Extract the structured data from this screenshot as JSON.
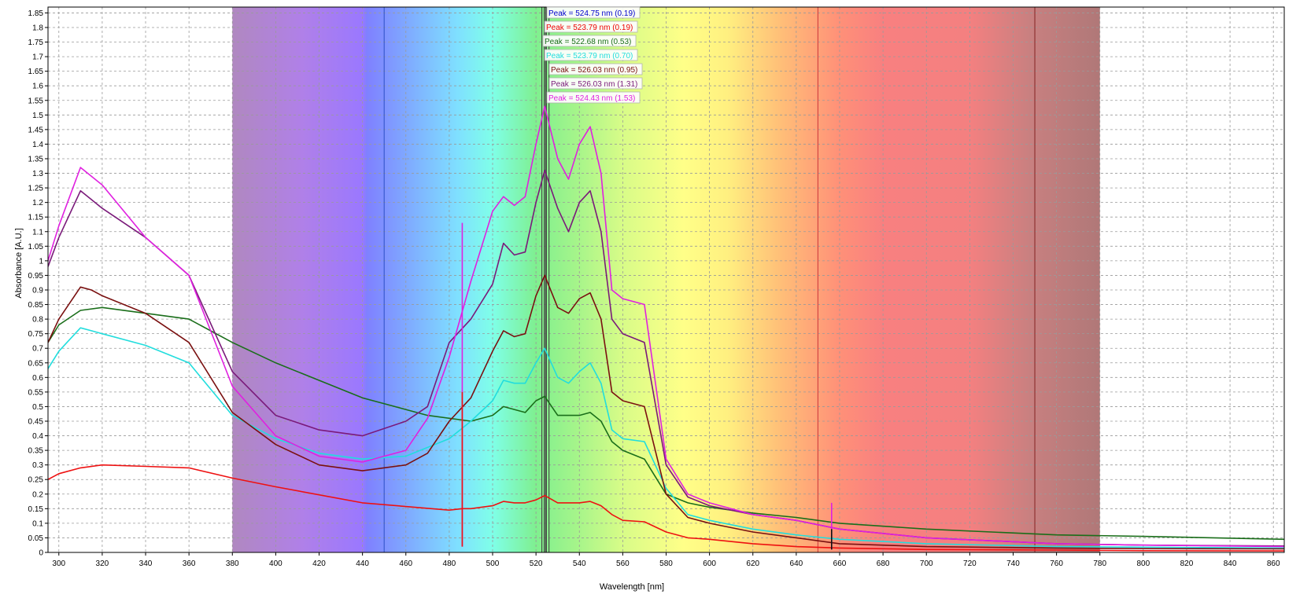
{
  "chart_data": {
    "type": "line",
    "title": "",
    "xlabel": "Wavelength [nm]",
    "ylabel": "Absorbance [A.U.]",
    "xlim": [
      295,
      865
    ],
    "ylim": [
      0,
      1.87
    ],
    "grid": true,
    "spectrum_band": [
      380,
      780
    ],
    "x_ticks": [
      300,
      320,
      340,
      360,
      380,
      400,
      420,
      440,
      460,
      480,
      500,
      520,
      540,
      560,
      580,
      600,
      620,
      640,
      660,
      680,
      700,
      720,
      740,
      760,
      780,
      800,
      820,
      840,
      860
    ],
    "y_ticks": [
      "0",
      "0.05",
      "0.1",
      "0.15",
      "0.2",
      "0.25",
      "0.3",
      "0.35",
      "0.4",
      "0.45",
      "0.5",
      "0.55",
      "0.6",
      "0.65",
      "0.7",
      "0.75",
      "0.8",
      "0.85",
      "0.9",
      "0.95",
      "1",
      "1.05",
      "1.1",
      "1.15",
      "1.2",
      "1.25",
      "1.3",
      "1.35",
      "1.4",
      "1.45",
      "1.5",
      "1.55",
      "1.6",
      "1.65",
      "1.7",
      "1.75",
      "1.8",
      "1.85"
    ],
    "markers": [
      {
        "x": 450,
        "color": "#3355cc"
      },
      {
        "x": 650,
        "color": "#d04040"
      },
      {
        "x": 750,
        "color": "#8b2a2a"
      },
      {
        "x": 522.7,
        "color": "#444444"
      },
      {
        "x": 523.8,
        "color": "#444444"
      },
      {
        "x": 524.4,
        "color": "#444444"
      },
      {
        "x": 524.8,
        "color": "#444444"
      },
      {
        "x": 526.0,
        "color": "#444444"
      }
    ],
    "peak_labels": [
      {
        "text": "Peak = 524.75 nm (0.19)",
        "color": "#0000cc"
      },
      {
        "text": "Peak = 523.79 nm (0.19)",
        "color": "#ee0000"
      },
      {
        "text": "Peak = 522.68 nm (0.53)",
        "color": "#1a6e1a"
      },
      {
        "text": "Peak = 523.79 nm (0.70)",
        "color": "#22dddd"
      },
      {
        "text": "Peak = 526.03 nm (0.95)",
        "color": "#7a1010"
      },
      {
        "text": "Peak = 526.03 nm (1.31)",
        "color": "#7a1a7a"
      },
      {
        "text": "Peak = 524.43 nm (1.53)",
        "color": "#e020e0"
      }
    ],
    "series": [
      {
        "color": "#ee1111",
        "x": [
          295,
          300,
          310,
          320,
          340,
          360,
          380,
          400,
          440,
          480,
          486,
          490,
          500,
          505,
          510,
          515,
          520,
          524,
          530,
          540,
          545,
          550,
          555,
          560,
          570,
          580,
          590,
          600,
          620,
          640,
          660,
          700,
          760,
          800,
          865
        ],
        "y": [
          0.25,
          0.27,
          0.29,
          0.3,
          0.295,
          0.29,
          0.255,
          0.225,
          0.17,
          0.145,
          0.15,
          0.15,
          0.16,
          0.175,
          0.17,
          0.17,
          0.18,
          0.195,
          0.17,
          0.17,
          0.175,
          0.16,
          0.13,
          0.11,
          0.105,
          0.07,
          0.05,
          0.045,
          0.03,
          0.02,
          0.015,
          0.01,
          0.008,
          0.006,
          0.005
        ]
      },
      {
        "color": "#1a6e1a",
        "x": [
          295,
          300,
          310,
          320,
          340,
          360,
          380,
          400,
          440,
          470,
          490,
          500,
          505,
          510,
          515,
          520,
          524,
          530,
          540,
          545,
          550,
          555,
          560,
          570,
          580,
          590,
          600,
          620,
          640,
          660,
          700,
          760,
          800,
          865
        ],
        "y": [
          0.72,
          0.78,
          0.83,
          0.84,
          0.82,
          0.8,
          0.72,
          0.65,
          0.53,
          0.47,
          0.45,
          0.47,
          0.5,
          0.49,
          0.48,
          0.52,
          0.535,
          0.47,
          0.47,
          0.48,
          0.45,
          0.38,
          0.35,
          0.32,
          0.2,
          0.17,
          0.155,
          0.135,
          0.12,
          0.1,
          0.08,
          0.06,
          0.055,
          0.045
        ]
      },
      {
        "color": "#22dddd",
        "x": [
          295,
          300,
          310,
          315,
          320,
          340,
          360,
          380,
          400,
          420,
          440,
          460,
          480,
          490,
          500,
          505,
          510,
          515,
          520,
          524,
          530,
          535,
          540,
          545,
          550,
          555,
          560,
          570,
          580,
          590,
          600,
          620,
          640,
          660,
          700,
          760,
          800,
          865
        ],
        "y": [
          0.63,
          0.69,
          0.77,
          0.76,
          0.75,
          0.71,
          0.65,
          0.47,
          0.39,
          0.34,
          0.32,
          0.33,
          0.39,
          0.45,
          0.52,
          0.59,
          0.58,
          0.58,
          0.65,
          0.7,
          0.6,
          0.58,
          0.62,
          0.65,
          0.58,
          0.42,
          0.39,
          0.38,
          0.22,
          0.13,
          0.11,
          0.08,
          0.06,
          0.045,
          0.03,
          0.02,
          0.018,
          0.015
        ]
      },
      {
        "color": "#7a1010",
        "x": [
          295,
          300,
          310,
          315,
          320,
          340,
          360,
          380,
          400,
          420,
          440,
          460,
          470,
          480,
          490,
          500,
          505,
          510,
          515,
          520,
          524,
          530,
          535,
          540,
          545,
          550,
          555,
          560,
          570,
          580,
          590,
          600,
          620,
          640,
          660,
          700,
          760,
          800,
          865
        ],
        "y": [
          0.72,
          0.8,
          0.91,
          0.9,
          0.88,
          0.82,
          0.72,
          0.48,
          0.37,
          0.3,
          0.28,
          0.3,
          0.34,
          0.45,
          0.53,
          0.69,
          0.76,
          0.74,
          0.75,
          0.88,
          0.95,
          0.84,
          0.82,
          0.87,
          0.89,
          0.8,
          0.55,
          0.52,
          0.5,
          0.2,
          0.12,
          0.1,
          0.07,
          0.05,
          0.03,
          0.02,
          0.015,
          0.013,
          0.012
        ]
      },
      {
        "color": "#7a1a7a",
        "x": [
          295,
          300,
          310,
          315,
          320,
          340,
          360,
          380,
          400,
          420,
          440,
          460,
          470,
          480,
          490,
          500,
          505,
          510,
          515,
          520,
          524,
          530,
          535,
          540,
          545,
          550,
          555,
          560,
          570,
          580,
          590,
          600,
          620,
          640,
          660,
          700,
          760,
          800,
          865
        ],
        "y": [
          0.98,
          1.08,
          1.24,
          1.21,
          1.18,
          1.08,
          0.95,
          0.62,
          0.47,
          0.42,
          0.4,
          0.45,
          0.5,
          0.72,
          0.8,
          0.92,
          1.06,
          1.02,
          1.03,
          1.2,
          1.31,
          1.18,
          1.1,
          1.2,
          1.24,
          1.1,
          0.8,
          0.75,
          0.72,
          0.3,
          0.19,
          0.16,
          0.13,
          0.11,
          0.08,
          0.05,
          0.03,
          0.025,
          0.022
        ]
      },
      {
        "color": "#e020e0",
        "x": [
          295,
          300,
          310,
          315,
          320,
          340,
          360,
          380,
          400,
          420,
          440,
          460,
          470,
          480,
          490,
          500,
          505,
          510,
          515,
          520,
          524,
          530,
          535,
          540,
          545,
          550,
          555,
          560,
          570,
          580,
          590,
          600,
          620,
          640,
          660,
          700,
          760,
          800,
          865
        ],
        "y": [
          1.0,
          1.12,
          1.32,
          1.29,
          1.26,
          1.08,
          0.95,
          0.57,
          0.4,
          0.33,
          0.31,
          0.35,
          0.46,
          0.67,
          0.93,
          1.17,
          1.22,
          1.19,
          1.22,
          1.4,
          1.53,
          1.35,
          1.28,
          1.4,
          1.46,
          1.3,
          0.9,
          0.87,
          0.85,
          0.32,
          0.2,
          0.17,
          0.13,
          0.11,
          0.08,
          0.05,
          0.03,
          0.025,
          0.02
        ]
      }
    ],
    "spikes": [
      {
        "x": 486,
        "y0": 0.02,
        "y1": 1.13,
        "color": "#e020e0"
      },
      {
        "x": 486,
        "y0": 0.02,
        "y1": 0.55,
        "color": "#ee1111"
      },
      {
        "x": 656.3,
        "y0": 0.01,
        "y1": 0.17,
        "color": "#e020e0"
      },
      {
        "x": 656.3,
        "y0": 0.01,
        "y1": 0.08,
        "color": "#111111"
      }
    ]
  }
}
